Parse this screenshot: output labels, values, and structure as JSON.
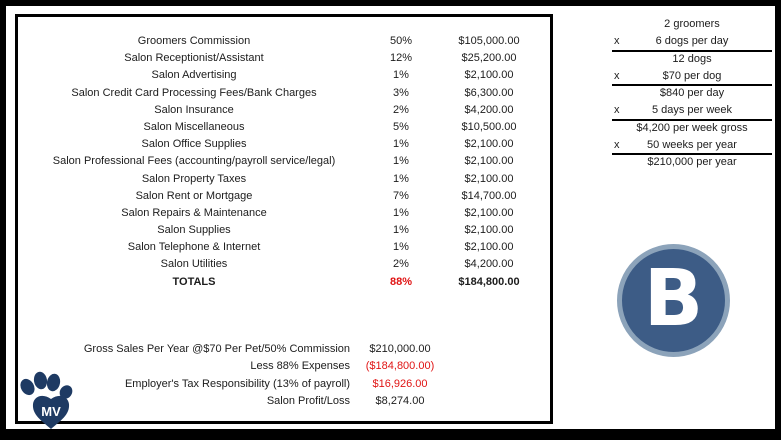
{
  "colors": {
    "red": "#e01414",
    "navy": "#1e3a63",
    "badge_fill": "#3d5c86",
    "badge_ring": "#8ca3ba",
    "text": "#1c1c1c"
  },
  "expense_table": {
    "rows": [
      {
        "label": "Groomers Commission",
        "percent": "50%",
        "amount": "$105,000.00"
      },
      {
        "label": "Salon Receptionist/Assistant",
        "percent": "12%",
        "amount": "$25,200.00"
      },
      {
        "label": "Salon Advertising",
        "percent": "1%",
        "amount": "$2,100.00"
      },
      {
        "label": "Salon Credit Card Processing Fees/Bank Charges",
        "percent": "3%",
        "amount": "$6,300.00"
      },
      {
        "label": "Salon Insurance",
        "percent": "2%",
        "amount": "$4,200.00"
      },
      {
        "label": "Salon Miscellaneous",
        "percent": "5%",
        "amount": "$10,500.00"
      },
      {
        "label": "Salon Office Supplies",
        "percent": "1%",
        "amount": "$2,100.00"
      },
      {
        "label": "Salon Professional Fees (accounting/payroll service/legal)",
        "percent": "1%",
        "amount": "$2,100.00"
      },
      {
        "label": "Salon Property Taxes",
        "percent": "1%",
        "amount": "$2,100.00"
      },
      {
        "label": "Salon Rent or Mortgage",
        "percent": "7%",
        "amount": "$14,700.00"
      },
      {
        "label": "Salon Repairs & Maintenance",
        "percent": "1%",
        "amount": "$2,100.00"
      },
      {
        "label": "Salon Supplies",
        "percent": "1%",
        "amount": "$2,100.00"
      },
      {
        "label": "Salon Telephone & Internet",
        "percent": "1%",
        "amount": "$2,100.00"
      },
      {
        "label": "Salon Utilities",
        "percent": "2%",
        "amount": "$4,200.00"
      }
    ],
    "totals": {
      "label": "TOTALS",
      "percent": "88%",
      "amount": "$184,800.00"
    }
  },
  "calc_panel": {
    "rows": [
      {
        "mult": "",
        "text": "2 groomers",
        "underline": false
      },
      {
        "mult": "x",
        "text": "6 dogs per day",
        "underline": true
      },
      {
        "mult": "",
        "text": "12 dogs",
        "underline": false
      },
      {
        "mult": "x",
        "text": "$70 per dog",
        "underline": true
      },
      {
        "mult": "",
        "text": "$840 per day",
        "underline": false
      },
      {
        "mult": "x",
        "text": "5 days per week",
        "underline": true
      },
      {
        "mult": "",
        "text": "$4,200 per week gross",
        "underline": false
      },
      {
        "mult": "x",
        "text": "50 weeks per year",
        "underline": true
      },
      {
        "mult": "",
        "text": "$210,000 per year",
        "underline": false
      }
    ]
  },
  "summary": {
    "rows": [
      {
        "label": "Gross Sales Per Year @$70 Per Pet/50% Commission",
        "amount": "$210,000.00",
        "red": false
      },
      {
        "label": "Less 88% Expenses",
        "amount": "($184,800.00)",
        "red": true
      },
      {
        "label": "Employer's Tax Responsibility (13% of payroll)",
        "amount": "$16,926.00",
        "red": true
      },
      {
        "label": "Salon Profit/Loss",
        "amount": "$8,274.00",
        "red": false
      }
    ]
  },
  "logos": {
    "b_badge": "B",
    "paw_initials": "MV"
  }
}
